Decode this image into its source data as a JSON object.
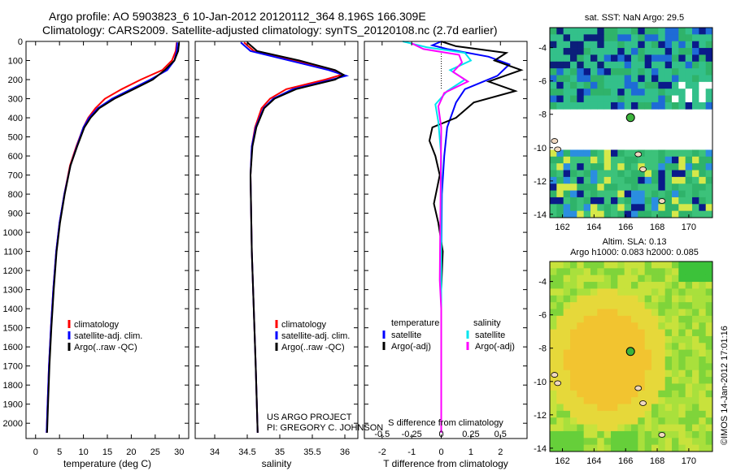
{
  "header": {
    "title_line1": "Argo profile: AO 5903823_6 10-Jan-2012 20120112_364 8.196S 166.309E",
    "title_line2": "Climatology: CARS2009. Satellite-adjusted climatology: synTS_20120108.nc (2.7d earlier)"
  },
  "footer": {
    "credit": "©IMOS 14-Jan-2012 17:01:16"
  },
  "colors": {
    "climatology": "#ff0000",
    "satellite": "#0000ff",
    "argo": "#000000",
    "sal_satellite": "#00e5ee",
    "sal_argo": "#ff00ff"
  },
  "chart_data": [
    {
      "type": "line",
      "name": "temperature-profile",
      "xlabel": "temperature (deg C)",
      "xlim": [
        -2,
        32
      ],
      "ylim": [
        2080,
        0
      ],
      "xticks": [
        0,
        5,
        10,
        15,
        20,
        25,
        30
      ],
      "yticks": [
        0,
        100,
        200,
        300,
        400,
        500,
        600,
        700,
        800,
        900,
        1000,
        1100,
        1200,
        1300,
        1400,
        1500,
        1600,
        1700,
        1800,
        1900,
        2000
      ],
      "legend": [
        "climatology",
        "satellite-adj. clim.",
        "Argo(..raw -QC)"
      ],
      "series": [
        {
          "name": "climatology",
          "color": "#ff0000",
          "points": [
            [
              29.5,
              5
            ],
            [
              29.3,
              50
            ],
            [
              28.5,
              100
            ],
            [
              26.5,
              150
            ],
            [
              22,
              200
            ],
            [
              18,
              250
            ],
            [
              14.5,
              300
            ],
            [
              12.5,
              350
            ],
            [
              11,
              400
            ],
            [
              10,
              450
            ],
            [
              8.5,
              550
            ],
            [
              7.2,
              650
            ],
            [
              6,
              800
            ],
            [
              5,
              950
            ],
            [
              4.3,
              1100
            ],
            [
              3.7,
              1300
            ],
            [
              3.2,
              1500
            ],
            [
              2.8,
              1700
            ],
            [
              2.5,
              1900
            ],
            [
              2.3,
              2050
            ]
          ]
        },
        {
          "name": "satellite-adj. clim.",
          "color": "#0000ff",
          "points": [
            [
              29.6,
              5
            ],
            [
              29.5,
              50
            ],
            [
              29,
              100
            ],
            [
              27.5,
              150
            ],
            [
              24,
              200
            ],
            [
              20,
              250
            ],
            [
              16,
              300
            ],
            [
              13,
              350
            ],
            [
              11.2,
              400
            ],
            [
              10,
              450
            ],
            [
              8.6,
              550
            ],
            [
              7.3,
              650
            ],
            [
              6,
              800
            ],
            [
              5,
              950
            ],
            [
              4.3,
              1100
            ],
            [
              3.7,
              1300
            ],
            [
              3.2,
              1500
            ],
            [
              2.8,
              1700
            ],
            [
              2.5,
              1900
            ],
            [
              2.3,
              2050
            ]
          ]
        },
        {
          "name": "Argo(..raw -QC)",
          "color": "#000000",
          "points": [
            [
              30,
              5
            ],
            [
              29.8,
              50
            ],
            [
              29,
              100
            ],
            [
              27,
              150
            ],
            [
              24.5,
              200
            ],
            [
              20.5,
              250
            ],
            [
              16.5,
              300
            ],
            [
              13.3,
              350
            ],
            [
              11.5,
              400
            ],
            [
              10.2,
              450
            ],
            [
              8.7,
              550
            ],
            [
              7.3,
              650
            ],
            [
              6.1,
              800
            ],
            [
              5.1,
              950
            ],
            [
              4.4,
              1100
            ],
            [
              3.8,
              1300
            ],
            [
              3.3,
              1500
            ],
            [
              2.9,
              1700
            ],
            [
              2.6,
              1900
            ],
            [
              2.4,
              2050
            ]
          ]
        }
      ]
    },
    {
      "type": "line",
      "name": "salinity-profile",
      "xlabel": "salinity",
      "xlim": [
        33.7,
        36.2
      ],
      "ylim": [
        2080,
        0
      ],
      "xticks": [
        34,
        34.5,
        35,
        35.5,
        36
      ],
      "legend": [
        "climatology",
        "satellite-adj. clim.",
        "Argo(..raw -QC)"
      ],
      "annotation_lines": [
        "US ARGO PROJECT",
        "PI: GREGORY C. JOHNSON"
      ],
      "series": [
        {
          "name": "climatology",
          "color": "#ff0000",
          "points": [
            [
              34.45,
              5
            ],
            [
              34.6,
              50
            ],
            [
              35.2,
              100
            ],
            [
              35.8,
              150
            ],
            [
              35.95,
              175
            ],
            [
              35.7,
              200
            ],
            [
              35.1,
              250
            ],
            [
              34.85,
              300
            ],
            [
              34.72,
              350
            ],
            [
              34.62,
              450
            ],
            [
              34.57,
              550
            ],
            [
              34.55,
              700
            ],
            [
              34.56,
              900
            ],
            [
              34.57,
              1100
            ],
            [
              34.6,
              1400
            ],
            [
              34.63,
              1700
            ],
            [
              34.66,
              2050
            ]
          ]
        },
        {
          "name": "satellite-adj. clim.",
          "color": "#0000ff",
          "points": [
            [
              34.4,
              5
            ],
            [
              34.55,
              50
            ],
            [
              35.15,
              100
            ],
            [
              35.75,
              150
            ],
            [
              36.02,
              180
            ],
            [
              35.8,
              200
            ],
            [
              35.2,
              250
            ],
            [
              34.9,
              300
            ],
            [
              34.75,
              350
            ],
            [
              34.63,
              450
            ],
            [
              34.57,
              550
            ],
            [
              34.55,
              700
            ],
            [
              34.56,
              900
            ],
            [
              34.57,
              1100
            ],
            [
              34.6,
              1400
            ],
            [
              34.63,
              1700
            ],
            [
              34.66,
              2050
            ]
          ]
        },
        {
          "name": "Argo(..raw -QC)",
          "color": "#000000",
          "points": [
            [
              34.5,
              5
            ],
            [
              34.65,
              50
            ],
            [
              35.3,
              100
            ],
            [
              35.85,
              150
            ],
            [
              35.98,
              175
            ],
            [
              35.85,
              200
            ],
            [
              35.25,
              250
            ],
            [
              34.92,
              300
            ],
            [
              34.76,
              350
            ],
            [
              34.64,
              450
            ],
            [
              34.58,
              550
            ],
            [
              34.55,
              700
            ],
            [
              34.56,
              900
            ],
            [
              34.57,
              1100
            ],
            [
              34.6,
              1400
            ],
            [
              34.63,
              1700
            ],
            [
              34.66,
              2050
            ]
          ]
        }
      ]
    },
    {
      "type": "line",
      "name": "difference-profile",
      "xlabel_top": "S difference from climatology",
      "xlabel": "T difference from climatology",
      "xlim": [
        -2.6,
        2.9
      ],
      "ylim": [
        2080,
        0
      ],
      "xticks": [
        -2,
        -1,
        0,
        1,
        2
      ],
      "sticks": [
        [
          -0.5,
          "-0.5"
        ],
        [
          -0.25,
          "-0.25"
        ],
        [
          0,
          "0"
        ],
        [
          0.25,
          "0.25"
        ],
        [
          0.5,
          "0.5"
        ]
      ],
      "s_scale_factor": 4,
      "legend": [
        "temperature",
        "satellite",
        "Argo(-adj)",
        "salinity",
        "satellite",
        "Argo(-adj)"
      ],
      "series": [
        {
          "name": "T satellite",
          "color": "#0000ff",
          "points": [
            [
              0,
              0
            ],
            [
              -0.3,
              20
            ],
            [
              0.2,
              40
            ],
            [
              1.6,
              80
            ],
            [
              2.3,
              120
            ],
            [
              1.9,
              180
            ],
            [
              0.8,
              250
            ],
            [
              0.5,
              320
            ],
            [
              0.2,
              450
            ],
            [
              0.1,
              600
            ],
            [
              0.02,
              800
            ],
            [
              0,
              1200
            ],
            [
              0,
              2050
            ]
          ]
        },
        {
          "name": "T Argo(-adj)",
          "color": "#000000",
          "points": [
            [
              0,
              0
            ],
            [
              0.5,
              25
            ],
            [
              2.2,
              60
            ],
            [
              1.8,
              100
            ],
            [
              2.7,
              150
            ],
            [
              1.6,
              210
            ],
            [
              2.5,
              260
            ],
            [
              1.1,
              320
            ],
            [
              0.5,
              400
            ],
            [
              -0.3,
              450
            ],
            [
              -0.4,
              520
            ],
            [
              -0.2,
              600
            ],
            [
              -0.05,
              700
            ],
            [
              -0.25,
              850
            ],
            [
              -0.1,
              950
            ],
            [
              0.05,
              1100
            ],
            [
              0,
              1300
            ],
            [
              0,
              2050
            ]
          ]
        },
        {
          "name": "S satellite",
          "color": "#00e5ee",
          "points": [
            [
              -1.3,
              0
            ],
            [
              -0.5,
              30
            ],
            [
              0.8,
              60
            ],
            [
              1.0,
              100
            ],
            [
              0.3,
              150
            ],
            [
              0.8,
              200
            ],
            [
              0.2,
              260
            ],
            [
              -0.2,
              330
            ],
            [
              -0.1,
              420
            ],
            [
              0,
              600
            ],
            [
              0,
              2050
            ]
          ]
        },
        {
          "name": "S Argo(-adj)",
          "color": "#ff00ff",
          "points": [
            [
              -1.0,
              10
            ],
            [
              -0.6,
              40
            ],
            [
              0.6,
              70
            ],
            [
              0.7,
              110
            ],
            [
              0.4,
              160
            ],
            [
              0.9,
              210
            ],
            [
              0.1,
              270
            ],
            [
              -0.1,
              340
            ],
            [
              0,
              450
            ],
            [
              -0.05,
              1250
            ],
            [
              0,
              1400
            ],
            [
              0,
              2050
            ]
          ]
        }
      ]
    },
    {
      "type": "heatmap",
      "name": "sst-map",
      "title": "sat. SST: NaN Argo: 29.5",
      "xlim": [
        161.2,
        171.5
      ],
      "ylim": [
        -14.2,
        -2.8
      ],
      "xticks": [
        162,
        164,
        166,
        168,
        170
      ],
      "yticks": [
        -4,
        -6,
        -8,
        -10,
        -12,
        -14
      ],
      "argo_point": [
        166.309,
        -8.196
      ]
    },
    {
      "type": "heatmap",
      "name": "sla-map",
      "title_line1": "Altim. SLA: 0.13",
      "title_line2": "Argo h1000: 0.083 h2000: 0.085",
      "xlim": [
        161.2,
        171.5
      ],
      "ylim": [
        -14.2,
        -2.8
      ],
      "xticks": [
        162,
        164,
        166,
        168,
        170
      ],
      "yticks": [
        -4,
        -6,
        -8,
        -10,
        -12,
        -14
      ],
      "argo_point": [
        166.309,
        -8.196
      ]
    }
  ]
}
